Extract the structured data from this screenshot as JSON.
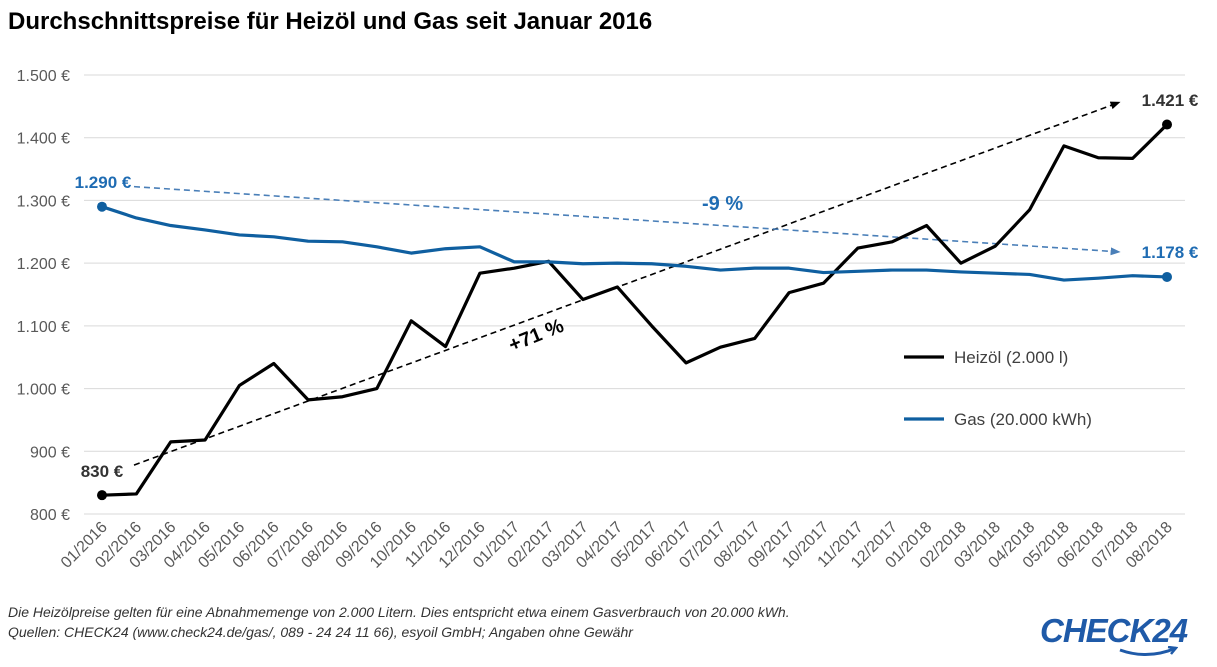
{
  "chart_data": {
    "type": "line",
    "title": "Durchschnittspreise für Heizöl und Gas seit Januar 2016",
    "categories": [
      "01/2016",
      "02/2016",
      "03/2016",
      "04/2016",
      "05/2016",
      "06/2016",
      "07/2016",
      "08/2016",
      "09/2016",
      "10/2016",
      "11/2016",
      "12/2016",
      "01/2017",
      "02/2017",
      "03/2017",
      "04/2017",
      "05/2017",
      "06/2017",
      "07/2017",
      "08/2017",
      "09/2017",
      "10/2017",
      "11/2017",
      "12/2017",
      "01/2018",
      "02/2018",
      "03/2018",
      "04/2018",
      "05/2018",
      "06/2018",
      "07/2018",
      "08/2018"
    ],
    "ylim": [
      800,
      1500
    ],
    "y_ticks": [
      800,
      900,
      1000,
      1100,
      1200,
      1300,
      1400,
      1500
    ],
    "y_tick_labels": [
      "800 €",
      "900 €",
      "1.000 €",
      "1.100 €",
      "1.200 €",
      "1.300 €",
      "1.400 €",
      "1.500 €"
    ],
    "grid": "horizontal",
    "legend_position": "right",
    "series": [
      {
        "name": "Heizöl (2.000 l)",
        "color": "#000000",
        "values": [
          830,
          832,
          915,
          918,
          1005,
          1040,
          982,
          987,
          1000,
          1108,
          1067,
          1184,
          1192,
          1203,
          1142,
          1162,
          1100,
          1041,
          1066,
          1080,
          1153,
          1168,
          1224,
          1234,
          1260,
          1200,
          1227,
          1285,
          1387,
          1368,
          1367,
          1421
        ],
        "start_label": "830 €",
        "end_label": "1.421 €"
      },
      {
        "name": "Gas (20.000 kWh)",
        "color": "#0f5fa0",
        "values": [
          1290,
          1272,
          1260,
          1253,
          1245,
          1242,
          1235,
          1234,
          1226,
          1216,
          1223,
          1226,
          1202,
          1202,
          1199,
          1200,
          1199,
          1195,
          1189,
          1192,
          1192,
          1185,
          1187,
          1189,
          1189,
          1186,
          1184,
          1182,
          1173,
          1176,
          1180,
          1178
        ],
        "start_label": "1.290 €",
        "end_label": "1.178 €"
      }
    ],
    "trend_lines": [
      {
        "series": "Heizöl (2.000 l)",
        "from": [
          0,
          878
        ],
        "to": [
          30,
          1456
        ],
        "label": "+71 %",
        "color": "#000000"
      },
      {
        "series": "Gas (20.000 kWh)",
        "from": [
          0,
          1322
        ],
        "to": [
          30,
          1218
        ],
        "label": "-9 %",
        "color": "#4a7fb8"
      }
    ]
  },
  "footnotes": {
    "line1": "Die Heizölpreise gelten für eine Abnahmemenge von 2.000 Litern. Dies entspricht etwa einem Gasverbrauch von 20.000 kWh.",
    "line2": "Quellen: CHECK24 (www.check24.de/gas/, 089 - 24 24 11 66), esyoil GmbH; Angaben ohne Gewähr"
  },
  "logo": "CHECK24"
}
